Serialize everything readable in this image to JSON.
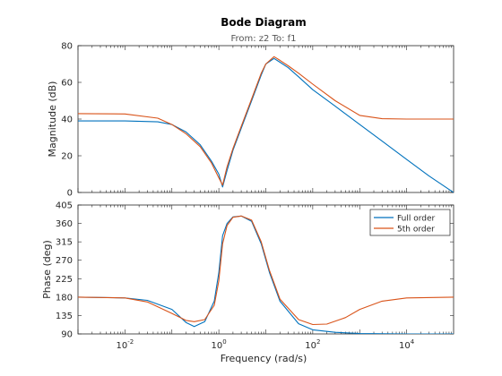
{
  "chart_data": {
    "type": "line",
    "title": "Bode Diagram",
    "subtitle": "From: z2  To: f1",
    "xlabel": "Frequency  (rad/s)",
    "x_scale": "log",
    "xlim": [
      0.001,
      100000
    ],
    "x_ticks": [
      0.01,
      1,
      100,
      10000
    ],
    "x_tick_labels": [
      {
        "base": "10",
        "exp": "-2"
      },
      {
        "base": "10",
        "exp": "0"
      },
      {
        "base": "10",
        "exp": "2"
      },
      {
        "base": "10",
        "exp": "4"
      }
    ],
    "legend": {
      "placement": "top-right",
      "panel": "phase"
    },
    "colors": {
      "full": "#0072BD",
      "fifth": "#D95319"
    },
    "panels": [
      {
        "name": "magnitude",
        "ylabel": "Magnitude (dB)",
        "ylim": [
          0,
          80
        ],
        "yticks": [
          0,
          20,
          40,
          60,
          80
        ],
        "series": [
          {
            "name": "Full order",
            "color": "#0072BD",
            "x": [
              0.001,
              0.01,
              0.05,
              0.1,
              0.2,
              0.4,
              0.7,
              1.0,
              1.2,
              1.5,
              2,
              3,
              5,
              8,
              10,
              15,
              20,
              30,
              50,
              100,
              300,
              1000,
              3000,
              10000,
              30000,
              100000
            ],
            "y": [
              39,
              39,
              38.5,
              37,
              33,
              26,
              17,
              10,
              3,
              12,
              23,
              35,
              50,
              64,
              70,
              73,
              71,
              68,
              63,
              56,
              47,
              37,
              28,
              18,
              9,
              0
            ]
          },
          {
            "name": "5th order",
            "color": "#D95319",
            "x": [
              0.001,
              0.01,
              0.05,
              0.1,
              0.2,
              0.4,
              0.7,
              1.0,
              1.2,
              1.5,
              2,
              3,
              5,
              8,
              10,
              15,
              20,
              30,
              50,
              100,
              300,
              1000,
              3000,
              10000,
              30000,
              100000
            ],
            "y": [
              43,
              42.8,
              40.5,
              37,
              32,
              25,
              16,
              8,
              4,
              14,
              24,
              36,
              51,
              65,
              70,
              74,
              72,
              69,
              65,
              59,
              50,
              42,
              40.2,
              40,
              40,
              40
            ]
          }
        ]
      },
      {
        "name": "phase",
        "ylabel": "Phase (deg)",
        "ylim": [
          90,
          405
        ],
        "yticks": [
          90,
          135,
          180,
          225,
          270,
          315,
          360,
          405
        ],
        "series": [
          {
            "name": "Full order",
            "color": "#0072BD",
            "x": [
              0.001,
              0.01,
              0.03,
              0.1,
              0.2,
              0.3,
              0.5,
              0.8,
              1.0,
              1.2,
              1.5,
              2,
              3,
              5,
              8,
              12,
              20,
              50,
              100,
              300,
              1000,
              10000,
              100000
            ],
            "y": [
              180,
              178,
              172,
              150,
              118,
              108,
              120,
              170,
              240,
              330,
              360,
              376,
              378,
              365,
              310,
              240,
              170,
              115,
              100,
              94,
              91,
              90,
              90
            ]
          },
          {
            "name": "5th order",
            "color": "#D95319",
            "x": [
              0.001,
              0.01,
              0.03,
              0.1,
              0.2,
              0.3,
              0.5,
              0.8,
              1.0,
              1.2,
              1.5,
              2,
              3,
              5,
              8,
              12,
              20,
              50,
              100,
              200,
              500,
              1000,
              3000,
              10000,
              100000
            ],
            "y": [
              180,
              178,
              168,
              140,
              123,
              120,
              125,
              160,
              220,
              310,
              355,
              375,
              378,
              368,
              315,
              245,
              175,
              125,
              113,
              114,
              130,
              150,
              170,
              178,
              180
            ]
          }
        ]
      }
    ]
  }
}
